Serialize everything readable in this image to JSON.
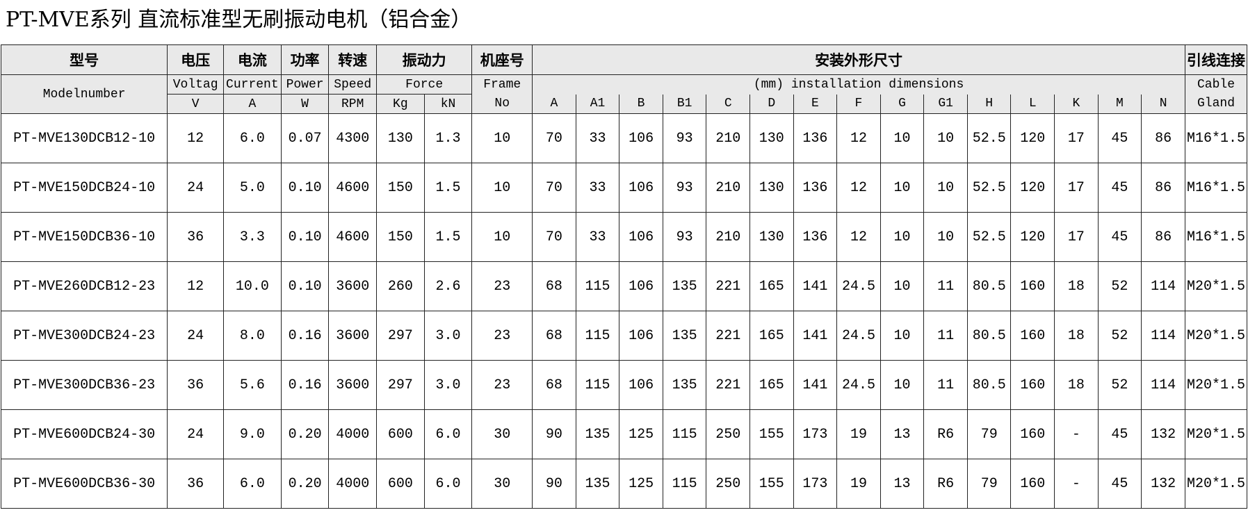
{
  "title": "PT-MVE系列 直流标准型无刷振动电机（铝合金）",
  "header": {
    "row1": [
      "型号",
      "电压",
      "电流",
      "功率",
      "转速",
      "振动力",
      "机座号",
      "安装外形尺寸",
      "引线连接"
    ],
    "row2": [
      "Modelnumber",
      "Voltag",
      "Current",
      "Power",
      "Speed",
      "Force",
      "Frame",
      "(mm) installation dimensions",
      "Cable"
    ],
    "row3": [
      "V",
      "A",
      "W",
      "RPM",
      "Kg",
      "kN",
      "No",
      "A",
      "A1",
      "B",
      "B1",
      "C",
      "D",
      "E",
      "F",
      "G",
      "G1",
      "H",
      "L",
      "K",
      "M",
      "N",
      "Gland"
    ]
  },
  "table": {
    "rows": [
      [
        "PT-MVE130DCB12-10",
        "12",
        "6.0",
        "0.07",
        "4300",
        "130",
        "1.3",
        "10",
        "70",
        "33",
        "106",
        "93",
        "210",
        "130",
        "136",
        "12",
        "10",
        "10",
        "52.5",
        "120",
        "17",
        "45",
        "86",
        "M16*1.5"
      ],
      [
        "PT-MVE150DCB24-10",
        "24",
        "5.0",
        "0.10",
        "4600",
        "150",
        "1.5",
        "10",
        "70",
        "33",
        "106",
        "93",
        "210",
        "130",
        "136",
        "12",
        "10",
        "10",
        "52.5",
        "120",
        "17",
        "45",
        "86",
        "M16*1.5"
      ],
      [
        "PT-MVE150DCB36-10",
        "36",
        "3.3",
        "0.10",
        "4600",
        "150",
        "1.5",
        "10",
        "70",
        "33",
        "106",
        "93",
        "210",
        "130",
        "136",
        "12",
        "10",
        "10",
        "52.5",
        "120",
        "17",
        "45",
        "86",
        "M16*1.5"
      ],
      [
        "PT-MVE260DCB12-23",
        "12",
        "10.0",
        "0.10",
        "3600",
        "260",
        "2.6",
        "23",
        "68",
        "115",
        "106",
        "135",
        "221",
        "165",
        "141",
        "24.5",
        "10",
        "11",
        "80.5",
        "160",
        "18",
        "52",
        "114",
        "M20*1.5"
      ],
      [
        "PT-MVE300DCB24-23",
        "24",
        "8.0",
        "0.16",
        "3600",
        "297",
        "3.0",
        "23",
        "68",
        "115",
        "106",
        "135",
        "221",
        "165",
        "141",
        "24.5",
        "10",
        "11",
        "80.5",
        "160",
        "18",
        "52",
        "114",
        "M20*1.5"
      ],
      [
        "PT-MVE300DCB36-23",
        "36",
        "5.6",
        "0.16",
        "3600",
        "297",
        "3.0",
        "23",
        "68",
        "115",
        "106",
        "135",
        "221",
        "165",
        "141",
        "24.5",
        "10",
        "11",
        "80.5",
        "160",
        "18",
        "52",
        "114",
        "M20*1.5"
      ],
      [
        "PT-MVE600DCB24-30",
        "24",
        "9.0",
        "0.20",
        "4000",
        "600",
        "6.0",
        "30",
        "90",
        "135",
        "125",
        "115",
        "250",
        "155",
        "173",
        "19",
        "13",
        "R6",
        "79",
        "160",
        "-",
        "45",
        "132",
        "M20*1.5"
      ],
      [
        "PT-MVE600DCB36-30",
        "36",
        "6.0",
        "0.20",
        "4000",
        "600",
        "6.0",
        "30",
        "90",
        "135",
        "125",
        "115",
        "250",
        "155",
        "173",
        "19",
        "13",
        "R6",
        "79",
        "160",
        "-",
        "45",
        "132",
        "M20*1.5"
      ]
    ]
  }
}
